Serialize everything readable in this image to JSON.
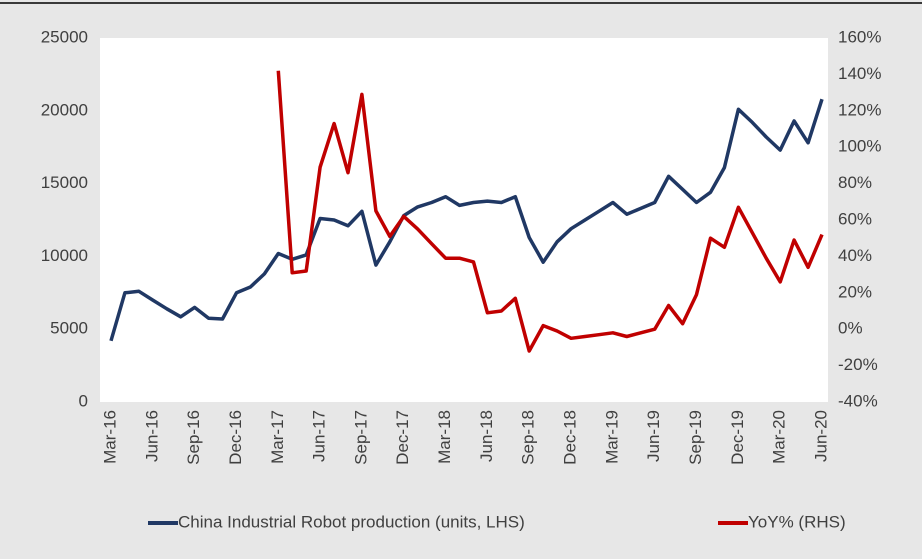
{
  "chart_data": {
    "type": "line",
    "categories": [
      "Mar-16",
      null,
      null,
      "Jun-16",
      null,
      null,
      "Sep-16",
      null,
      null,
      "Dec-16",
      null,
      null,
      "Mar-17",
      null,
      null,
      "Jun-17",
      null,
      null,
      "Sep-17",
      null,
      null,
      "Dec-17",
      null,
      null,
      "Mar-18",
      null,
      null,
      "Jun-18",
      null,
      null,
      "Sep-18",
      null,
      null,
      "Dec-18",
      null,
      null,
      "Mar-19",
      null,
      null,
      "Jun-19",
      null,
      null,
      "Sep-19",
      null,
      null,
      "Dec-19",
      null,
      null,
      "Mar-20",
      null,
      null,
      "Jun-20"
    ],
    "series": [
      {
        "name": "China Industrial Robot production (units, LHS)",
        "color": "#203864",
        "axis": "y",
        "values": [
          4200,
          7500,
          7600,
          7000,
          6400,
          5850,
          6500,
          5750,
          5700,
          7500,
          7900,
          8800,
          10200,
          9800,
          10100,
          12600,
          12500,
          12100,
          13100,
          9400,
          11000,
          12800,
          13400,
          13700,
          14100,
          13500,
          13700,
          13800,
          13700,
          14100,
          11300,
          9600,
          11000,
          11900,
          12500,
          13100,
          13700,
          12900,
          13300,
          13700,
          15500,
          14600,
          13700,
          14400,
          16100,
          20100,
          19200,
          18200,
          17300,
          19300,
          17800,
          20800
        ]
      },
      {
        "name": "YoY% (RHS)",
        "color": "#c00000",
        "axis": "y2",
        "values": [
          null,
          null,
          null,
          null,
          null,
          null,
          null,
          null,
          null,
          null,
          null,
          null,
          142,
          31,
          32,
          89,
          113,
          86,
          129,
          65,
          51,
          62,
          55,
          47,
          39,
          39,
          37,
          9,
          10,
          17,
          -12,
          2,
          -1,
          -5,
          -4,
          -3,
          -2,
          -4,
          -2,
          0,
          13,
          3,
          19,
          50,
          45,
          67,
          53,
          39,
          26,
          49,
          34,
          52
        ]
      }
    ],
    "ylim": [
      0,
      25000
    ],
    "yticks": [
      0,
      5000,
      10000,
      15000,
      20000,
      25000
    ],
    "y2lim": [
      -40,
      160
    ],
    "y2ticks": [
      {
        "value": -40,
        "label": "-40%"
      },
      {
        "value": -20,
        "label": "-20%"
      },
      {
        "value": 0,
        "label": "0%"
      },
      {
        "value": 20,
        "label": "20%"
      },
      {
        "value": 40,
        "label": "40%"
      },
      {
        "value": 60,
        "label": "60%"
      },
      {
        "value": 80,
        "label": "80%"
      },
      {
        "value": 100,
        "label": "100%"
      },
      {
        "value": 120,
        "label": "120%"
      },
      {
        "value": 140,
        "label": "140%"
      },
      {
        "value": 160,
        "label": "160%"
      }
    ],
    "legend": "bottom"
  }
}
